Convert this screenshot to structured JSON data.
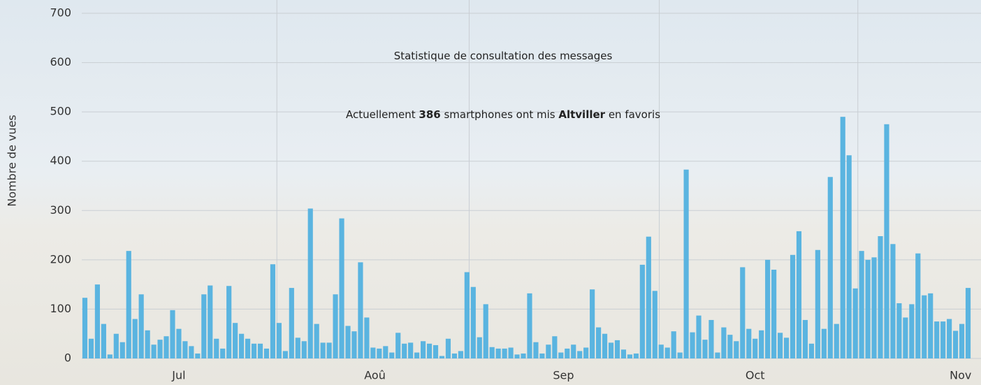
{
  "chart_data": {
    "type": "bar",
    "title": "Statistique de consultation des messages",
    "subtitle": [
      "Actuellement ",
      "386",
      " smartphones ont mis ",
      "Altviller",
      " en favoris"
    ],
    "y_label": "Nombre de vues",
    "color": "#5ab4e0",
    "grid": true,
    "categories": [
      null,
      null,
      null,
      null,
      null,
      null,
      null,
      null,
      null,
      null,
      null,
      null,
      null,
      null,
      null,
      null,
      null,
      null,
      null,
      null,
      null,
      null,
      null,
      null,
      null,
      null,
      null,
      null,
      null,
      null,
      null,
      null,
      null,
      null,
      null,
      null,
      null,
      null,
      null,
      null,
      null,
      null,
      null,
      null,
      null,
      null,
      null,
      null,
      null,
      null,
      null,
      null,
      null,
      null,
      null,
      null,
      null,
      null,
      null,
      null,
      null,
      null,
      null,
      null,
      null,
      null,
      null,
      null,
      null,
      null,
      null,
      null,
      null,
      null,
      null,
      null,
      null,
      null,
      null,
      null,
      null,
      null,
      null,
      null,
      null,
      null,
      null,
      null,
      null,
      null,
      null,
      null,
      null,
      null,
      null,
      null,
      null,
      null,
      null,
      null,
      null,
      null,
      null,
      null,
      null,
      null,
      null,
      null,
      null,
      null,
      null,
      null,
      null,
      null,
      null,
      null,
      null,
      null,
      null,
      null,
      null,
      null,
      null,
      null,
      null,
      null,
      null,
      null,
      null,
      null,
      null,
      null,
      null,
      null,
      null,
      null,
      null,
      null,
      null,
      null,
      null,
      null
    ],
    "values": [
      123,
      40,
      150,
      70,
      8,
      50,
      33,
      218,
      80,
      130,
      57,
      28,
      38,
      45,
      98,
      60,
      35,
      25,
      10,
      130,
      148,
      40,
      20,
      147,
      72,
      50,
      40,
      30,
      30,
      20,
      191,
      72,
      15,
      143,
      42,
      35,
      304,
      70,
      32,
      32,
      130,
      284,
      66,
      55,
      195,
      83,
      22,
      20,
      25,
      12,
      52,
      30,
      32,
      12,
      35,
      30,
      27,
      5,
      40,
      10,
      15,
      175,
      145,
      43,
      110,
      23,
      20,
      20,
      22,
      8,
      10,
      132,
      33,
      10,
      28,
      45,
      12,
      20,
      28,
      15,
      22,
      140,
      63,
      50,
      32,
      37,
      18,
      8,
      10,
      190,
      247,
      137,
      28,
      22,
      55,
      12,
      383,
      53,
      87,
      38,
      78,
      12,
      63,
      48,
      35,
      185,
      60,
      40,
      57,
      200,
      180,
      52,
      42,
      210,
      258,
      78,
      30,
      220,
      60,
      368,
      70,
      490,
      412,
      142,
      218,
      200,
      205,
      248,
      475,
      232,
      112,
      83,
      110,
      213,
      128,
      132,
      75,
      75,
      80,
      56,
      70,
      143
    ],
    "xticks": [
      {
        "value": 15,
        "label": "Jul"
      },
      {
        "value": 46.3,
        "label": "Aoû"
      },
      {
        "value": 76.4,
        "label": "Sep"
      },
      {
        "value": 107,
        "label": "Oct"
      },
      {
        "value": 139.8,
        "label": "Nov"
      }
    ],
    "ylim": [
      0,
      700
    ],
    "yticks": [
      0,
      100,
      200,
      300,
      400,
      500,
      600,
      700
    ]
  }
}
